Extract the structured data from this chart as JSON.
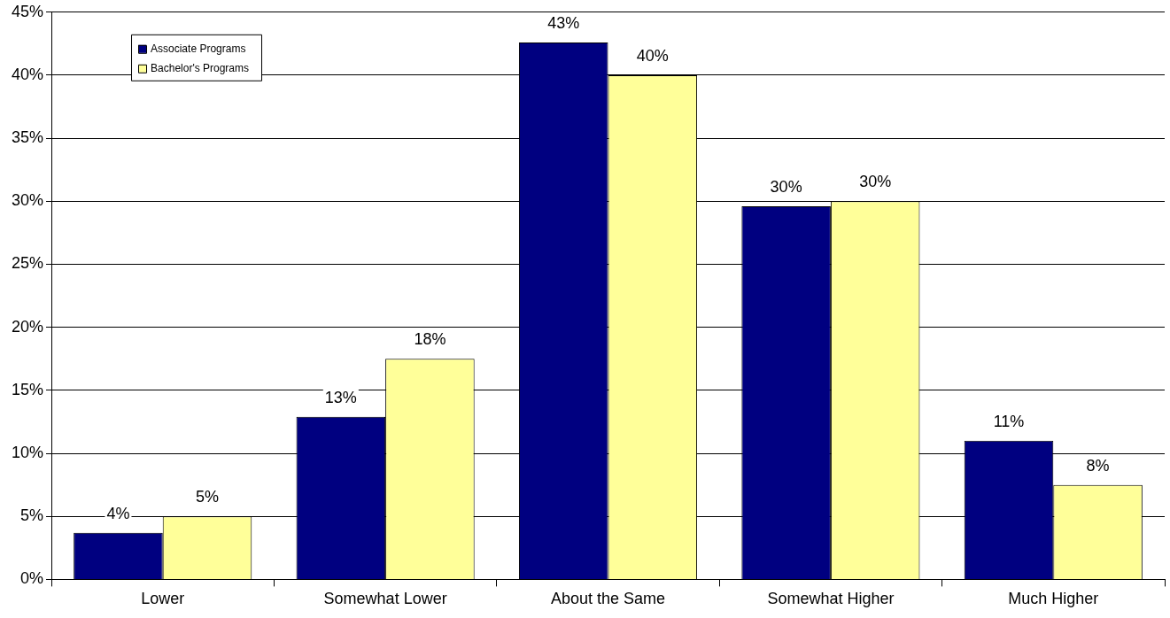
{
  "chart_data": {
    "type": "bar",
    "categories": [
      "Lower",
      "Somewhat Lower",
      "About the Same",
      "Somewhat Higher",
      "Much Higher"
    ],
    "series": [
      {
        "name": "Associate Programs",
        "color": "#000080",
        "values": [
          3.7,
          12.9,
          42.6,
          29.6,
          11.0
        ],
        "value_labels": [
          "4%",
          "13%",
          "43%",
          "30%",
          "11%"
        ]
      },
      {
        "name": "Bachelor's Programs",
        "color": "#ffff99",
        "values": [
          5.0,
          17.5,
          40.0,
          30.0,
          7.5
        ],
        "value_labels": [
          "5%",
          "18%",
          "40%",
          "30%",
          "8%"
        ]
      }
    ],
    "ylim": [
      0,
      45
    ],
    "yticks": [
      {
        "value": 0,
        "label": "0%"
      },
      {
        "value": 5,
        "label": "5%"
      },
      {
        "value": 10,
        "label": "10%"
      },
      {
        "value": 15,
        "label": "15%"
      },
      {
        "value": 20,
        "label": "20%"
      },
      {
        "value": 25,
        "label": "25%"
      },
      {
        "value": 30,
        "label": "30%"
      },
      {
        "value": 35,
        "label": "35%"
      },
      {
        "value": 40,
        "label": "40%"
      },
      {
        "value": 45,
        "label": "45%"
      }
    ],
    "grid": "y",
    "legend": "top left"
  }
}
